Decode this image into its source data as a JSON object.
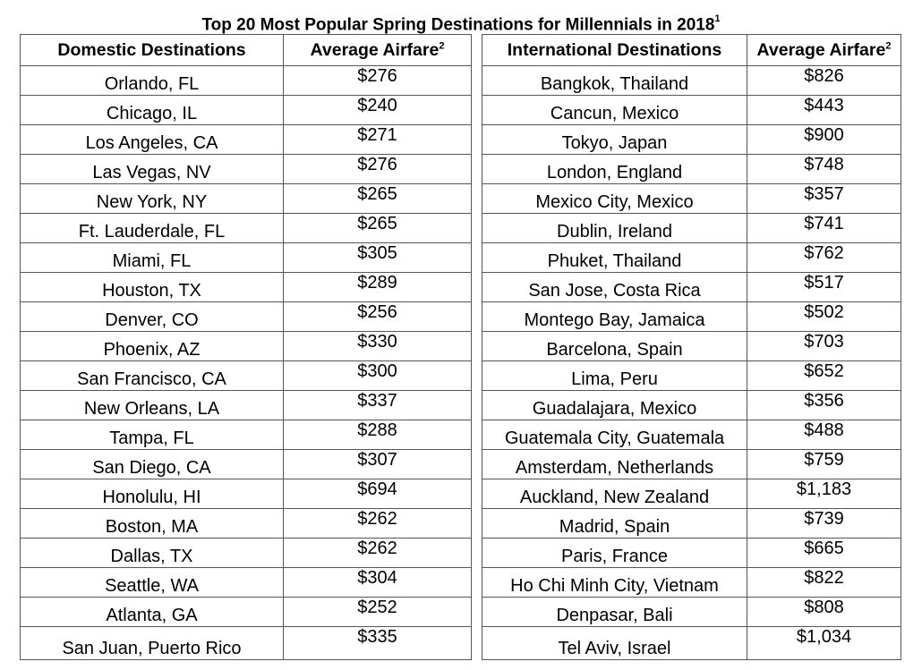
{
  "title": "Top 20 Most Popular Spring Destinations for Millennials in 2018",
  "title_footnote": "1",
  "domestic": {
    "header": "Domestic Destinations",
    "fare_header": "Average Airfare",
    "fare_footnote": "2",
    "rows": [
      {
        "place": "Orlando, FL",
        "fare": "$276"
      },
      {
        "place": "Chicago, IL",
        "fare": "$240"
      },
      {
        "place": "Los Angeles, CA",
        "fare": "$271"
      },
      {
        "place": "Las Vegas, NV",
        "fare": "$276"
      },
      {
        "place": "New York, NY",
        "fare": "$265"
      },
      {
        "place": "Ft. Lauderdale, FL",
        "fare": "$265"
      },
      {
        "place": "Miami, FL",
        "fare": "$305"
      },
      {
        "place": "Houston, TX",
        "fare": "$289"
      },
      {
        "place": "Denver, CO",
        "fare": "$256"
      },
      {
        "place": "Phoenix, AZ",
        "fare": "$330"
      },
      {
        "place": "San Francisco, CA",
        "fare": "$300"
      },
      {
        "place": "New Orleans, LA",
        "fare": "$337"
      },
      {
        "place": "Tampa, FL",
        "fare": "$288"
      },
      {
        "place": "San Diego, CA",
        "fare": "$307"
      },
      {
        "place": "Honolulu, HI",
        "fare": "$694"
      },
      {
        "place": "Boston, MA",
        "fare": "$262"
      },
      {
        "place": "Dallas, TX",
        "fare": "$262"
      },
      {
        "place": "Seattle, WA",
        "fare": "$304"
      },
      {
        "place": "Atlanta, GA",
        "fare": "$252"
      },
      {
        "place": "San Juan, Puerto Rico",
        "fare": "$335"
      }
    ]
  },
  "international": {
    "header": "International Destinations",
    "fare_header": "Average Airfare",
    "fare_footnote": "2",
    "rows": [
      {
        "place": "Bangkok, Thailand",
        "fare": "$826"
      },
      {
        "place": "Cancun, Mexico",
        "fare": "$443"
      },
      {
        "place": "Tokyo, Japan",
        "fare": "$900"
      },
      {
        "place": "London, England",
        "fare": "$748"
      },
      {
        "place": "Mexico City, Mexico",
        "fare": "$357"
      },
      {
        "place": "Dublin, Ireland",
        "fare": "$741"
      },
      {
        "place": "Phuket, Thailand",
        "fare": "$762"
      },
      {
        "place": "San Jose, Costa Rica",
        "fare": "$517"
      },
      {
        "place": "Montego Bay, Jamaica",
        "fare": "$502"
      },
      {
        "place": "Barcelona, Spain",
        "fare": "$703"
      },
      {
        "place": "Lima, Peru",
        "fare": "$652"
      },
      {
        "place": "Guadalajara, Mexico",
        "fare": "$356"
      },
      {
        "place": "Guatemala City, Guatemala",
        "fare": "$488"
      },
      {
        "place": "Amsterdam, Netherlands",
        "fare": "$759"
      },
      {
        "place": "Auckland, New Zealand",
        "fare": "$1,183"
      },
      {
        "place": "Madrid, Spain",
        "fare": "$739"
      },
      {
        "place": "Paris, France",
        "fare": "$665"
      },
      {
        "place": "Ho Chi Minh City, Vietnam",
        "fare": "$822"
      },
      {
        "place": "Denpasar, Bali",
        "fare": "$808"
      },
      {
        "place": "Tel Aviv, Israel",
        "fare": "$1,034"
      }
    ]
  }
}
